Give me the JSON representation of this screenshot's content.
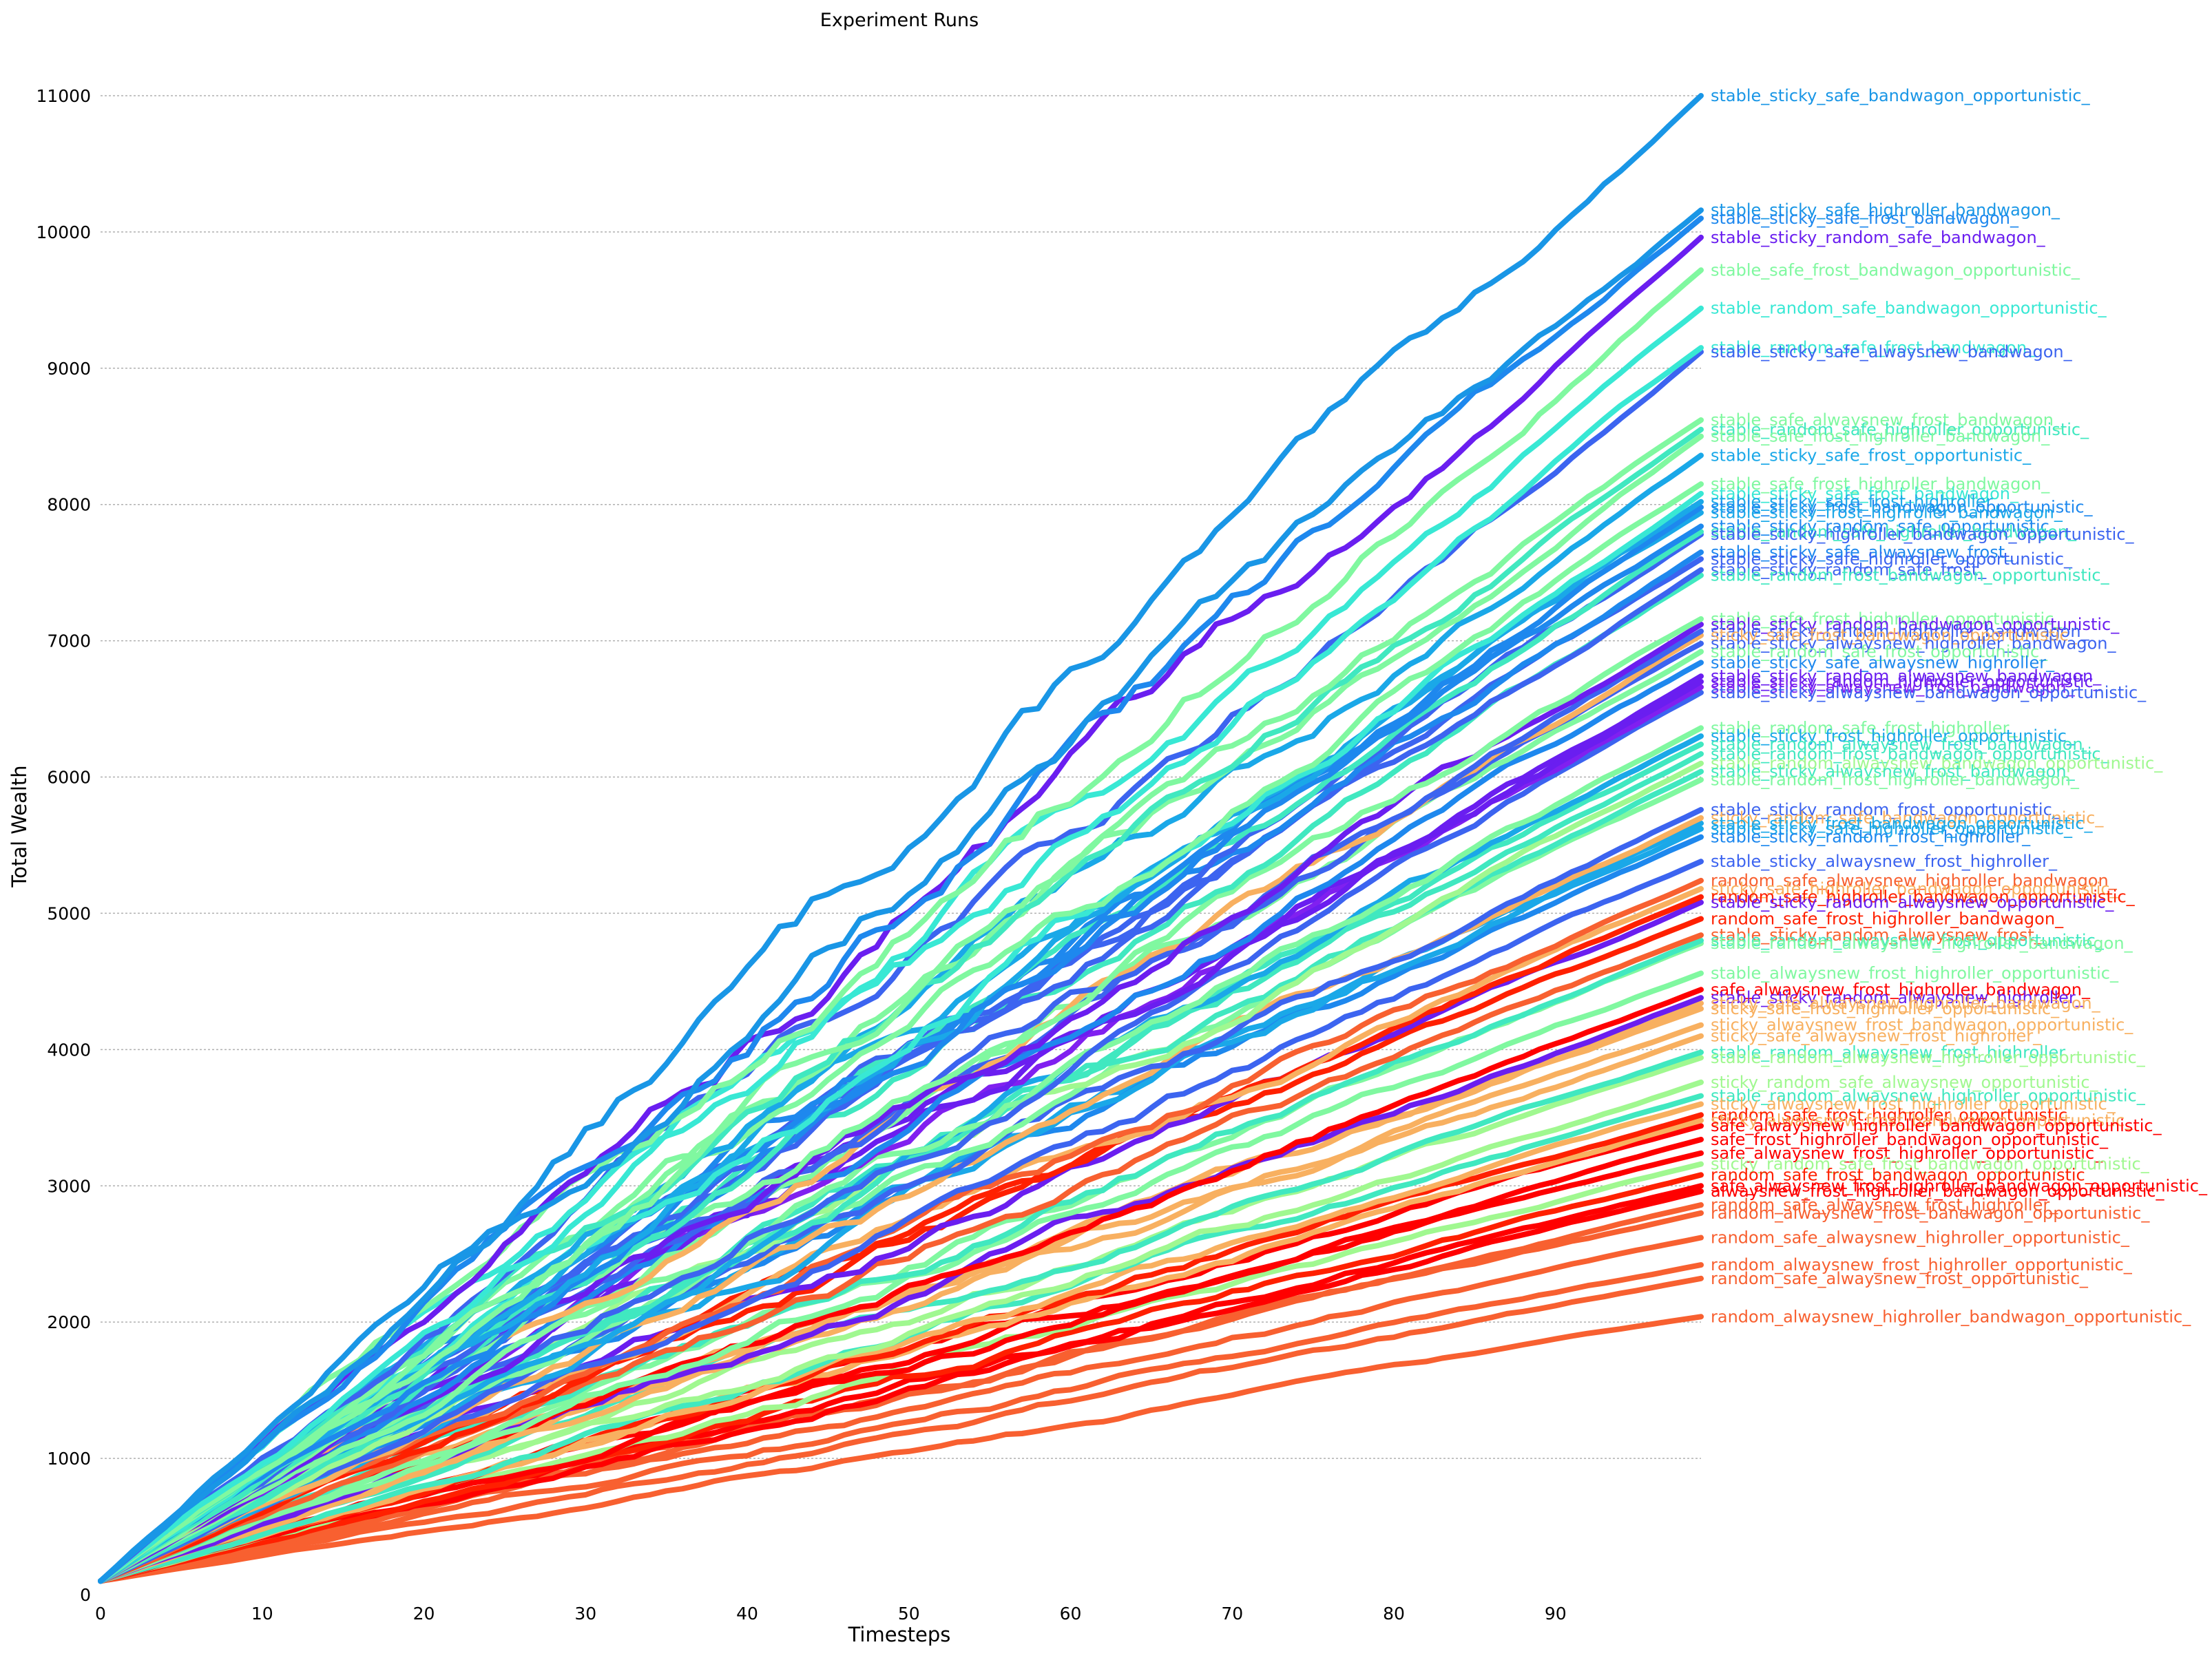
{
  "chart_data": {
    "type": "line",
    "title": "Experiment Runs",
    "xlabel": "Timesteps",
    "ylabel": "Total Wealth",
    "xlim": [
      0,
      99
    ],
    "ylim": [
      0,
      11500
    ],
    "xticks": [
      0,
      10,
      20,
      30,
      40,
      50,
      60,
      70,
      80,
      90
    ],
    "yticks": [
      0,
      1000,
      2000,
      3000,
      4000,
      5000,
      6000,
      7000,
      8000,
      9000,
      10000,
      11000
    ],
    "grid": "horizontal",
    "legend": "labels at right end of each line",
    "start_value": 100,
    "series": [
      {
        "name": "stable_sticky_safe_bandwagon_opportunistic_",
        "final": 11000,
        "color": "#1996e6"
      },
      {
        "name": "stable_sticky_safe_highroller_bandwagon_",
        "final": 10160,
        "color": "#1996e6"
      },
      {
        "name": "stable_sticky_safe_frost_bandwagon_",
        "final": 10100,
        "color": "#1e88ee"
      },
      {
        "name": "stable_sticky_random_safe_bandwagon_",
        "final": 9960,
        "color": "#6a1ef0"
      },
      {
        "name": "stable_safe_frost_bandwagon_opportunistic_",
        "final": 9720,
        "color": "#80f8a0"
      },
      {
        "name": "stable_random_safe_bandwagon_opportunistic_",
        "final": 9440,
        "color": "#38e8d4"
      },
      {
        "name": "stable_random_safe_frost_bandwagon_",
        "final": 9150,
        "color": "#38e8d4"
      },
      {
        "name": "stable_sticky_safe_alwaysnew_bandwagon_",
        "final": 9120,
        "color": "#3c64f0"
      },
      {
        "name": "stable_safe_alwaysnew_frost_bandwagon_",
        "final": 8620,
        "color": "#80f8a0"
      },
      {
        "name": "stable_random_safe_highroller_opportunistic_",
        "final": 8550,
        "color": "#40e8c0"
      },
      {
        "name": "stable_safe_frost_highroller_bandwagon_",
        "final": 8500,
        "color": "#80f8a0"
      },
      {
        "name": "stable_sticky_safe_frost_opportunistic_",
        "final": 8360,
        "color": "#1aa8e8"
      },
      {
        "name": "stable_safe_frost_highroller_bandwagon_",
        "final": 8150,
        "color": "#80f8a0"
      },
      {
        "name": "stable_sticky_safe_frost_bandwagon_",
        "final": 8080,
        "color": "#38e8d4"
      },
      {
        "name": "stable_sticky_safe_frost_highroller_",
        "final": 8020,
        "color": "#1aa8e8"
      },
      {
        "name": "stable_sticky_frost_bandwagon_opportunistic_",
        "final": 7980,
        "color": "#1e88ee"
      },
      {
        "name": "stable_sticky_frost_highroller_bandwagon_",
        "final": 7940,
        "color": "#1aa8e8"
      },
      {
        "name": "stable_sticky_random_safe_opportunistic_",
        "final": 7840,
        "color": "#1e88ee"
      },
      {
        "name": "stable_random_safe_highroller_bandwagon_",
        "final": 7800,
        "color": "#40e8c0"
      },
      {
        "name": "stable_sticky_highroller_bandwagon_opportunistic_",
        "final": 7780,
        "color": "#3c64f0"
      },
      {
        "name": "stable_sticky_safe_alwaysnew_frost_",
        "final": 7650,
        "color": "#1e88ee"
      },
      {
        "name": "stable_sticky_safe_highroller_opportunistic_",
        "final": 7600,
        "color": "#3c64f0"
      },
      {
        "name": "stable_sticky_random_safe_frost_",
        "final": 7520,
        "color": "#3c64f0"
      },
      {
        "name": "stable_random_frost_bandwagon_opportunistic_",
        "final": 7480,
        "color": "#40e8c0"
      },
      {
        "name": "stable_safe_frost_highroller_opportunistic_",
        "final": 7160,
        "color": "#80f8a0"
      },
      {
        "name": "stable_sticky_random_bandwagon_opportunistic_",
        "final": 7120,
        "color": "#6a1ef0"
      },
      {
        "name": "stable_sticky_random_highroller_bandwagon_",
        "final": 7070,
        "color": "#3c64f0"
      },
      {
        "name": "sticky_safe_frost_bandwagon_opportunistic_",
        "final": 7040,
        "color": "#f8b060"
      },
      {
        "name": "stable_sticky_alwaysnew_highroller_bandwagon_",
        "final": 6980,
        "color": "#3c64f0"
      },
      {
        "name": "stable_random_safe_frost_opportunistic_",
        "final": 6920,
        "color": "#80f8a0"
      },
      {
        "name": "stable_sticky_safe_alwaysnew_highroller_",
        "final": 6840,
        "color": "#1e88ee"
      },
      {
        "name": "stable_sticky_random_alwaysnew_bandwagon_",
        "final": 6740,
        "color": "#6a1ef0"
      },
      {
        "name": "stable_sticky_random_highroller_opportunistic_",
        "final": 6700,
        "color": "#6a1ef0"
      },
      {
        "name": "stable_sticky_alwaysnew_frost_bandwagon_",
        "final": 6660,
        "color": "#8020f0"
      },
      {
        "name": "stable_sticky_alwaysnew_bandwagon_opportunistic_",
        "final": 6620,
        "color": "#3c64f0"
      },
      {
        "name": "stable_random_safe_frost_highroller_",
        "final": 6360,
        "color": "#80f8a0"
      },
      {
        "name": "stable_sticky_frost_highroller_opportunistic_",
        "final": 6300,
        "color": "#1aa8e8"
      },
      {
        "name": "stable_random_alwaysnew_frost_bandwagon_",
        "final": 6240,
        "color": "#40e8c0"
      },
      {
        "name": "stable_random_frost_bandwagon_opportunistic_",
        "final": 6170,
        "color": "#40e8c0"
      },
      {
        "name": "stable_random_alwaysnew_bandwagon_opportunistic_",
        "final": 6100,
        "color": "#a0f890"
      },
      {
        "name": "stable_sticky_alwaysnew_frost_bandwagon_",
        "final": 6040,
        "color": "#40e8c0"
      },
      {
        "name": "stable_random_frost_highroller_bandwagon_",
        "final": 5980,
        "color": "#80f8a0"
      },
      {
        "name": "stable_sticky_random_frost_opportunistic_",
        "final": 5760,
        "color": "#3c64f0"
      },
      {
        "name": "sticky_random_safe_bandwagon_opportunistic_",
        "final": 5700,
        "color": "#f8b060"
      },
      {
        "name": "stable_sticky_frost_bandwagon_opportunistic_",
        "final": 5660,
        "color": "#1aa8e8"
      },
      {
        "name": "stable_sticky_safe_highroller_opportunistic_",
        "final": 5620,
        "color": "#1aa8e8"
      },
      {
        "name": "stable_sticky_random_frost_highroller_",
        "final": 5560,
        "color": "#1e88ee"
      },
      {
        "name": "stable_sticky_alwaysnew_frost_highroller_",
        "final": 5380,
        "color": "#3c64f0"
      },
      {
        "name": "random_safe_alwaysnew_highroller_bandwagon_",
        "final": 5240,
        "color": "#f86030"
      },
      {
        "name": "sticky_safe_highroller_bandwagon_opportunistic_",
        "final": 5180,
        "color": "#f8b060"
      },
      {
        "name": "random_safe_highroller_bandwagon_opportunistic_",
        "final": 5120,
        "color": "#ff2000"
      },
      {
        "name": "stable_sticky_random_alwaysnew_opportunistic_",
        "final": 5080,
        "color": "#6a1ef0"
      },
      {
        "name": "random_safe_frost_highroller_bandwagon_",
        "final": 4960,
        "color": "#ff2000"
      },
      {
        "name": "stable_sticky_random_alwaysnew_frost_",
        "final": 4840,
        "color": "#f86030"
      },
      {
        "name": "stable_random_alwaysnew_frost_opportunistic_",
        "final": 4800,
        "color": "#40e8c0"
      },
      {
        "name": "stable_random_alwaysnew_highroller_bandwagon_",
        "final": 4780,
        "color": "#80f8a0"
      },
      {
        "name": "stable_alwaysnew_frost_highroller_opportunistic_",
        "final": 4560,
        "color": "#80f8a0"
      },
      {
        "name": "safe_alwaysnew_frost_highroller_bandwagon_",
        "final": 4440,
        "color": "#ff0000"
      },
      {
        "name": "stable_sticky_random_alwaysnew_highroller_",
        "final": 4380,
        "color": "#6a1ef0"
      },
      {
        "name": "sticky_safe_alwaysnew_highroller_bandwagon_",
        "final": 4340,
        "color": "#f8b060"
      },
      {
        "name": "sticky_safe_frost_highroller_opportunistic_",
        "final": 4300,
        "color": "#f8b060"
      },
      {
        "name": "sticky_alwaysnew_frost_bandwagon_opportunistic_",
        "final": 4180,
        "color": "#f8b060"
      },
      {
        "name": "sticky_safe_alwaysnew_frost_highroller_",
        "final": 4100,
        "color": "#f8b060"
      },
      {
        "name": "stable_random_alwaysnew_frost_highroller",
        "final": 3980,
        "color": "#40e8c0"
      },
      {
        "name": "stable_random_alwaysnew_highroller_opportunistic_",
        "final": 3940,
        "color": "#a0f890"
      },
      {
        "name": "sticky_random_safe_alwaysnew_opportunistic_",
        "final": 3760,
        "color": "#a0f890"
      },
      {
        "name": "stable_random_alwaysnew_highroller_opportunistic_",
        "final": 3660,
        "color": "#40e8c0"
      },
      {
        "name": "sticky_alwaysnew_frost_highroller_opportunistic_",
        "final": 3600,
        "color": "#f8b060"
      },
      {
        "name": "random_safe_frost_highroller_opportunistic_",
        "final": 3520,
        "color": "#ff2000"
      },
      {
        "name": "sticky_alwaysnew_frost_bandwagon_opportunistic_",
        "final": 3480,
        "color": "#f8b060"
      },
      {
        "name": "safe_alwaysnew_highroller_bandwagon_opportunistic_",
        "final": 3440,
        "color": "#ff0000"
      },
      {
        "name": "safe_frost_highroller_bandwagon_opportunistic_",
        "final": 3340,
        "color": "#ff0000"
      },
      {
        "name": "safe_alwaysnew_frost_highroller_opportunistic_",
        "final": 3240,
        "color": "#ff0000"
      },
      {
        "name": "sticky_random_safe_frost_bandwagon_opportunistic_",
        "final": 3160,
        "color": "#a0f890"
      },
      {
        "name": "random_safe_frost_bandwagon_opportunistic_",
        "final": 3080,
        "color": "#ff2000"
      },
      {
        "name": "safe_alwaysnew_frost_highroller_bandwagon_opportunistic_",
        "final": 3000,
        "color": "#ff0000"
      },
      {
        "name": "alwaysnew_frost_highroller_bandwagon_opportunistic_",
        "final": 2960,
        "color": "#ff0000"
      },
      {
        "name": "random_safe_alwaysnew_frost_highroller_",
        "final": 2860,
        "color": "#f86030"
      },
      {
        "name": "random_alwaysnew_frost_bandwagon_opportunistic_",
        "final": 2800,
        "color": "#f86030"
      },
      {
        "name": "random_safe_alwaysnew_highroller_opportunistic_",
        "final": 2620,
        "color": "#f86030"
      },
      {
        "name": "random_alwaysnew_frost_highroller_opportunistic_",
        "final": 2420,
        "color": "#f86030"
      },
      {
        "name": "random_safe_alwaysnew_frost_opportunistic_",
        "final": 2320,
        "color": "#f86030"
      },
      {
        "name": "random_alwaysnew_highroller_bandwagon_opportunistic_",
        "final": 2040,
        "color": "#f86030"
      }
    ]
  }
}
